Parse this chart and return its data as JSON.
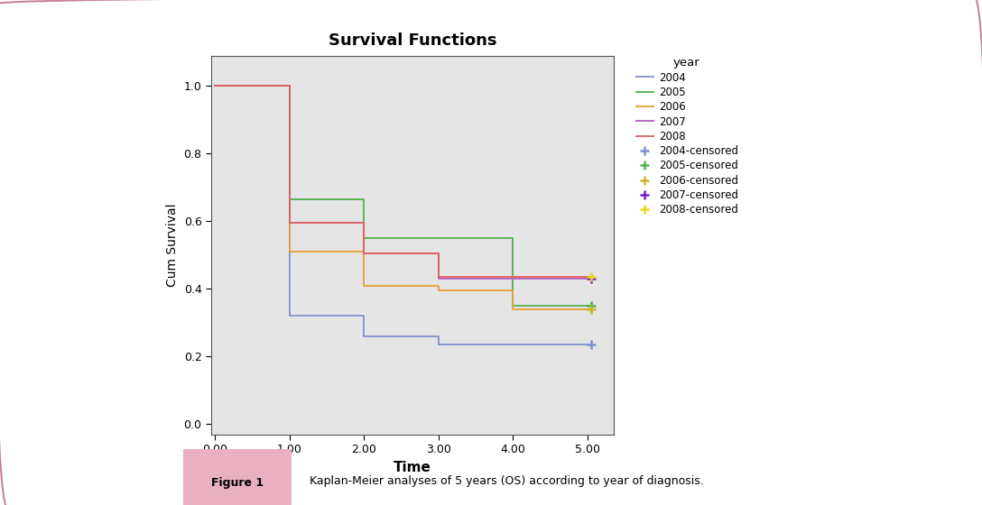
{
  "title": "Survival Functions",
  "xlabel": "Time",
  "ylabel": "Cum Survival",
  "xlim": [
    -0.05,
    5.35
  ],
  "ylim": [
    -0.03,
    1.09
  ],
  "xticks": [
    0.0,
    1.0,
    2.0,
    3.0,
    4.0,
    5.0
  ],
  "yticks": [
    0.0,
    0.2,
    0.4,
    0.6,
    0.8,
    1.0
  ],
  "background_color": "#e5e5e5",
  "figure_bg": "#ffffff",
  "border_color": "#c8829a",
  "curves": {
    "2004": {
      "color": "#8090c8",
      "x": [
        0.0,
        1.0,
        1.0,
        2.0,
        2.0,
        3.0,
        3.0,
        5.05
      ],
      "y": [
        1.0,
        1.0,
        0.32,
        0.32,
        0.26,
        0.26,
        0.235,
        0.235
      ],
      "cens_x": [
        5.05
      ],
      "cens_y": [
        0.235
      ]
    },
    "2005": {
      "color": "#50b050",
      "x": [
        0.0,
        1.0,
        1.0,
        2.0,
        2.0,
        4.0,
        4.0,
        5.05
      ],
      "y": [
        1.0,
        1.0,
        0.665,
        0.665,
        0.55,
        0.55,
        0.35,
        0.35
      ],
      "cens_x": [
        5.05
      ],
      "cens_y": [
        0.35
      ]
    },
    "2006": {
      "color": "#e8a030",
      "x": [
        0.0,
        1.0,
        1.0,
        2.0,
        2.0,
        3.0,
        3.0,
        4.0,
        4.0,
        5.05
      ],
      "y": [
        1.0,
        1.0,
        0.51,
        0.51,
        0.41,
        0.41,
        0.395,
        0.395,
        0.34,
        0.34
      ],
      "cens_x": [
        5.05
      ],
      "cens_y": [
        0.34
      ]
    },
    "2007": {
      "color": "#b060c0",
      "x": [
        0.0,
        1.0,
        1.0,
        2.0,
        2.0,
        3.0,
        3.0,
        5.05
      ],
      "y": [
        1.0,
        1.0,
        0.595,
        0.595,
        0.505,
        0.505,
        0.43,
        0.43
      ],
      "cens_x": [
        5.05
      ],
      "cens_y": [
        0.43
      ]
    },
    "2008": {
      "color": "#e06060",
      "x": [
        0.0,
        1.0,
        1.0,
        2.0,
        2.0,
        3.0,
        3.0,
        5.05
      ],
      "y": [
        1.0,
        1.0,
        0.595,
        0.595,
        0.505,
        0.505,
        0.435,
        0.435
      ],
      "cens_x": [
        5.05
      ],
      "cens_y": [
        0.435
      ]
    }
  },
  "censored_colors": {
    "2004": "#8090c8",
    "2005": "#50b050",
    "2006": "#c8b820",
    "2007": "#7020c8",
    "2008": "#e8d820"
  },
  "legend_title": "year",
  "caption_label": "Figure 1",
  "caption_text": "Kaplan-Meier analyses of 5 years (OS) according to year of diagnosis."
}
